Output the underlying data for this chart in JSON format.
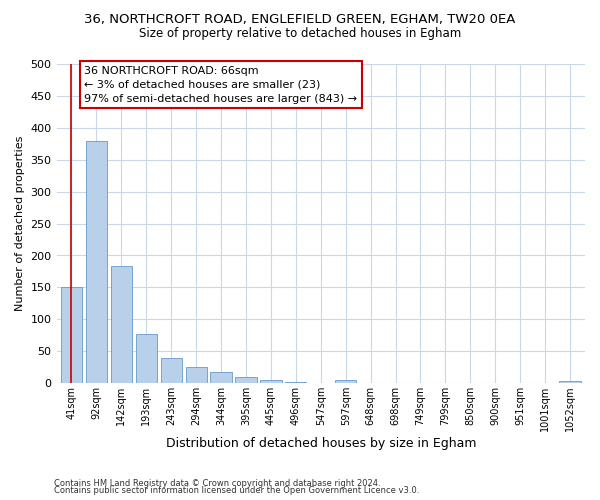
{
  "title_line1": "36, NORTHCROFT ROAD, ENGLEFIELD GREEN, EGHAM, TW20 0EA",
  "title_line2": "Size of property relative to detached houses in Egham",
  "xlabel": "Distribution of detached houses by size in Egham",
  "ylabel": "Number of detached properties",
  "categories": [
    "41sqm",
    "92sqm",
    "142sqm",
    "193sqm",
    "243sqm",
    "294sqm",
    "344sqm",
    "395sqm",
    "445sqm",
    "496sqm",
    "547sqm",
    "597sqm",
    "648sqm",
    "698sqm",
    "749sqm",
    "799sqm",
    "850sqm",
    "900sqm",
    "951sqm",
    "1001sqm",
    "1052sqm"
  ],
  "values": [
    150,
    380,
    183,
    77,
    39,
    25,
    18,
    10,
    5,
    2,
    0,
    5,
    0,
    0,
    0,
    0,
    0,
    0,
    0,
    0,
    4
  ],
  "bar_color": "#b8d0ea",
  "bar_edge_color": "#6699cc",
  "annotation_box_text": "36 NORTHCROFT ROAD: 66sqm\n← 3% of detached houses are smaller (23)\n97% of semi-detached houses are larger (843) →",
  "annotation_box_color": "#cc0000",
  "ylim": [
    0,
    500
  ],
  "yticks": [
    0,
    50,
    100,
    150,
    200,
    250,
    300,
    350,
    400,
    450,
    500
  ],
  "footer_line1": "Contains HM Land Registry data © Crown copyright and database right 2024.",
  "footer_line2": "Contains public sector information licensed under the Open Government Licence v3.0.",
  "bg_color": "#ffffff",
  "grid_color": "#c8d8e8"
}
